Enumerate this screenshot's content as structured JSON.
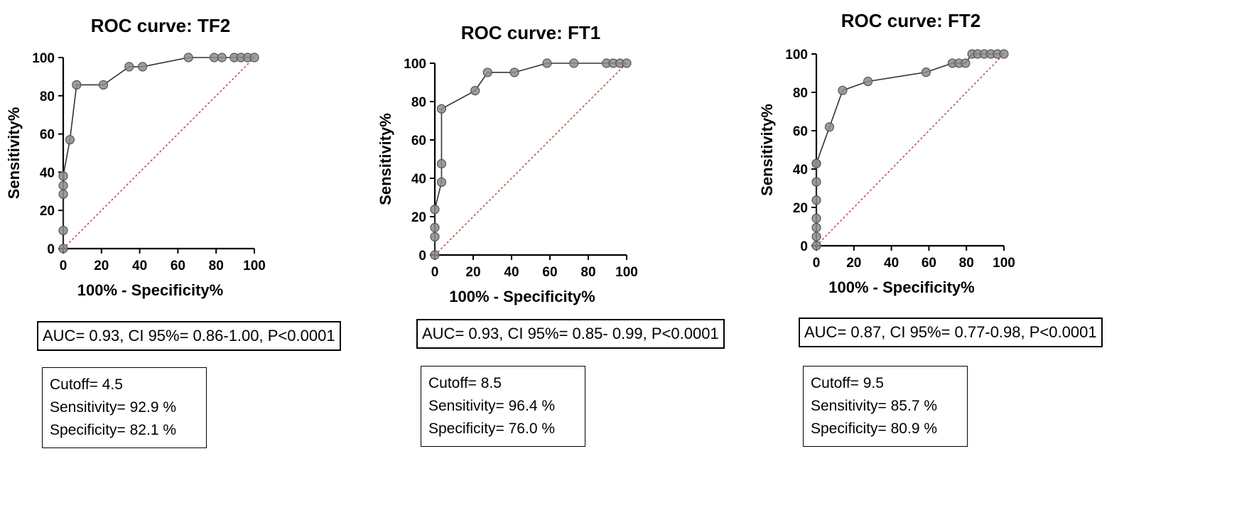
{
  "chart_data": [
    {
      "type": "line",
      "title": "ROC curve: TF2",
      "xlabel": "100% - Specificity%",
      "ylabel": "Sensitivity%",
      "xlim": [
        0,
        100
      ],
      "ylim": [
        0,
        100
      ],
      "xticks": [
        "0",
        "20",
        "40",
        "60",
        "80",
        "100"
      ],
      "yticks": [
        "0",
        "20",
        "40",
        "60",
        "80",
        "100"
      ],
      "grid": false,
      "reference_line": {
        "from": [
          0,
          0
        ],
        "to": [
          100,
          100
        ],
        "color": "#c0504d"
      },
      "x": [
        0,
        0,
        0,
        0,
        0,
        3.5,
        7,
        21,
        34.5,
        41.5,
        65.5,
        79,
        83,
        89.5,
        93,
        96.5,
        100
      ],
      "y": [
        0,
        9.5,
        28.5,
        33,
        38,
        57,
        85.7,
        85.7,
        95.2,
        95.2,
        100,
        100,
        100,
        100,
        100,
        100,
        100
      ],
      "summary": "AUC= 0.93, CI 95%= 0.86-1.00, P<0.0001",
      "cutoff": [
        "Cutoff= 4.5",
        "Sensitivity= 92.9 %",
        "Specificity= 82.1 %"
      ]
    },
    {
      "type": "line",
      "title": "ROC curve: FT1",
      "xlabel": "100% - Specificity%",
      "ylabel": "Sensitivity%",
      "xlim": [
        0,
        100
      ],
      "ylim": [
        0,
        100
      ],
      "xticks": [
        "0",
        "20",
        "40",
        "60",
        "80",
        "100"
      ],
      "yticks": [
        "0",
        "20",
        "40",
        "60",
        "80",
        "100"
      ],
      "grid": false,
      "reference_line": {
        "from": [
          0,
          0
        ],
        "to": [
          100,
          100
        ],
        "color": "#c0504d"
      },
      "x": [
        0,
        0,
        0,
        0,
        3.5,
        3.5,
        3.5,
        21,
        27.5,
        41.5,
        58.5,
        72.5,
        89.5,
        93,
        96.5,
        100
      ],
      "y": [
        0,
        9.5,
        14.3,
        23.8,
        38,
        47.6,
        76.2,
        85.7,
        95.2,
        95.2,
        100,
        100,
        100,
        100,
        100,
        100
      ],
      "summary": "AUC= 0.93, CI 95%= 0.85- 0.99, P<0.0001",
      "cutoff": [
        "Cutoff= 8.5",
        "Sensitivity= 96.4 %",
        "Specificity= 76.0 %"
      ]
    },
    {
      "type": "line",
      "title": "ROC curve: FT2",
      "xlabel": "100% - Specificity%",
      "ylabel": "Sensitivity%",
      "xlim": [
        0,
        100
      ],
      "ylim": [
        0,
        100
      ],
      "xticks": [
        "0",
        "20",
        "40",
        "60",
        "80",
        "100"
      ],
      "yticks": [
        "0",
        "20",
        "40",
        "60",
        "80",
        "100"
      ],
      "grid": false,
      "reference_line": {
        "from": [
          0,
          0
        ],
        "to": [
          100,
          100
        ],
        "color": "#c0504d"
      },
      "x": [
        0,
        0,
        0,
        0,
        0,
        0,
        0,
        0,
        7,
        14,
        27.5,
        58.5,
        72.5,
        76,
        79.5,
        83,
        86,
        89.5,
        93,
        96.5,
        100
      ],
      "y": [
        0,
        4.8,
        9.5,
        14.3,
        23.8,
        33.3,
        42.9,
        42.9,
        61.9,
        81,
        85.7,
        90.5,
        95.2,
        95.2,
        95.2,
        100,
        100,
        100,
        100,
        100,
        100
      ],
      "summary": "AUC= 0.87, CI 95%= 0.77-0.98, P<0.0001",
      "cutoff": [
        "Cutoff= 9.5",
        "Sensitivity= 85.7 %",
        "Specificity= 80.9 %"
      ]
    }
  ]
}
